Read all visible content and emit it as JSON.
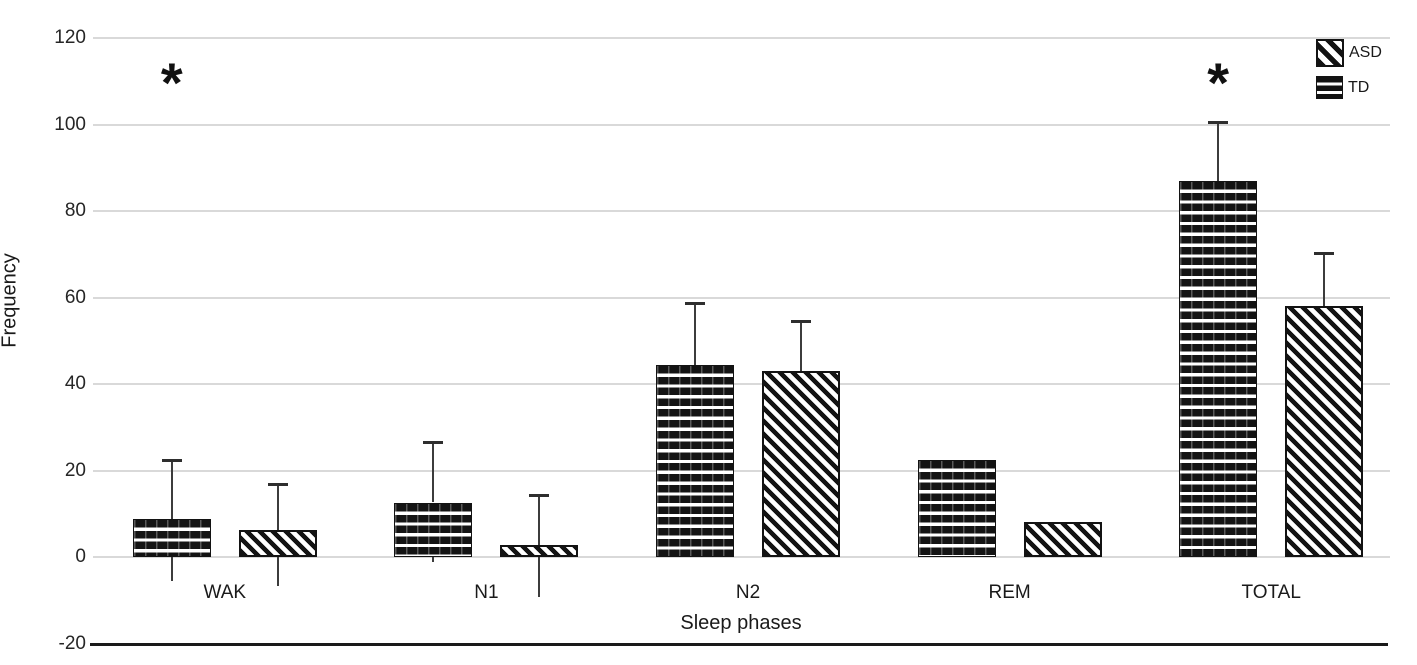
{
  "figure": {
    "background_color": "#ffffff",
    "bar_pattern_color": "#131313",
    "gridline_color": "#d9d9d9",
    "axis_line_color": "#1a1a1a",
    "error_bar_color": "#3c3c3c"
  },
  "chart_data": {
    "type": "bar",
    "title": "",
    "xlabel": "Sleep phases",
    "ylabel": "Frequency",
    "ylim": [
      -20,
      120
    ],
    "yticks": [
      -20,
      0,
      20,
      40,
      60,
      80,
      100,
      120
    ],
    "grid": true,
    "legend_position": "top-right",
    "categories": [
      "WAK",
      "N1",
      "N2",
      "REM",
      "TOTAL"
    ],
    "series": [
      {
        "name": "TD",
        "pattern": "horizontal-stripes",
        "values": [
          8.8,
          12.6,
          44.5,
          22.5,
          87
        ],
        "error_upper": [
          22.5,
          26.5,
          58.8,
          null,
          100.5
        ],
        "error_lower": [
          -5.5,
          -1.2,
          null,
          null,
          null
        ]
      },
      {
        "name": "ASD",
        "pattern": "diagonal-stripes",
        "values": [
          6.2,
          2.8,
          43,
          8,
          58
        ],
        "error_upper": [
          16.8,
          14.3,
          54.5,
          null,
          70.3
        ],
        "error_lower": [
          -6.6,
          -9.3,
          null,
          null,
          null
        ]
      }
    ],
    "annotations": [
      {
        "text": "*",
        "category": "WAK",
        "value": 112,
        "over_series": "TD"
      },
      {
        "text": "*",
        "category": "TOTAL",
        "value": 112,
        "over_series": "TD"
      }
    ]
  },
  "legend": {
    "items": [
      {
        "label": "ASD",
        "swatch": "diagonal-stripes"
      },
      {
        "label": "TD",
        "swatch": "horizontal-stripes"
      }
    ]
  }
}
